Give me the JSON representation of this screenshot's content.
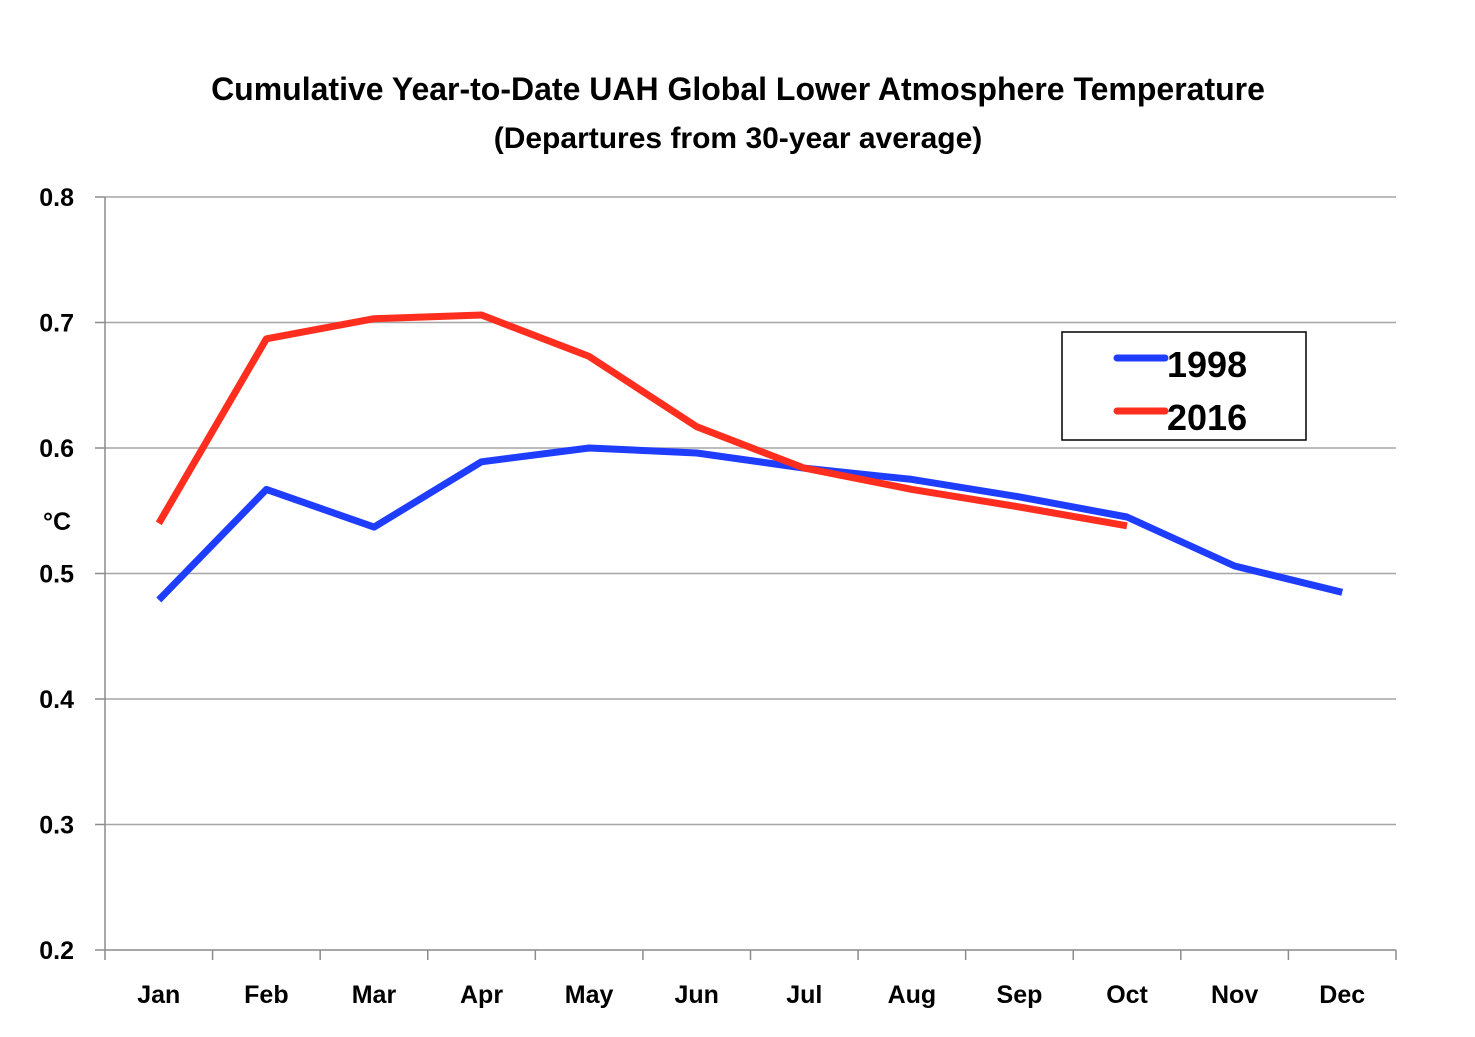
{
  "chart_data": {
    "type": "line",
    "title": "Cumulative Year-to-Date UAH Global Lower Atmosphere Temperature",
    "subtitle": "(Departures from 30-year average)",
    "xlabel": "",
    "ylabel": "°C",
    "ylim": [
      0.2,
      0.8
    ],
    "yticks": [
      "0.2",
      "0.3",
      "0.4",
      "0.5",
      "0.6",
      "0.7",
      "0.8"
    ],
    "grid": true,
    "legend_position": "top-right",
    "categories": [
      "Jan",
      "Feb",
      "Mar",
      "Apr",
      "May",
      "Jun",
      "Jul",
      "Aug",
      "Sep",
      "Oct",
      "Nov",
      "Dec"
    ],
    "series": [
      {
        "name": "1998",
        "color": "#1f3dff",
        "values": [
          0.479,
          0.567,
          0.537,
          0.589,
          0.6,
          0.596,
          0.584,
          0.575,
          0.561,
          0.545,
          0.506,
          0.485
        ]
      },
      {
        "name": "2016",
        "color": "#ff2e1f",
        "values": [
          0.54,
          0.687,
          0.703,
          0.706,
          0.673,
          0.617,
          0.584,
          0.567,
          0.553,
          0.538,
          null,
          null
        ]
      }
    ]
  }
}
